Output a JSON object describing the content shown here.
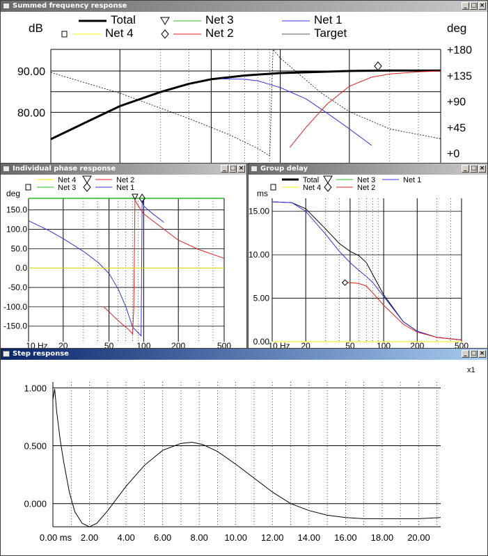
{
  "windows": {
    "summed": {
      "title": "Summed frequency response"
    },
    "phase": {
      "title": "Individual phase response"
    },
    "group": {
      "title": "Group delay"
    },
    "step": {
      "title": "Step response"
    }
  },
  "window_buttons": {
    "minimize": "_",
    "maximize": "□",
    "close": "×"
  },
  "colors": {
    "total": "#000000",
    "net1": "#3030e0",
    "net2": "#e02020",
    "net3": "#20c020",
    "net4": "#f0f000",
    "target": "#555555",
    "active_title": "#0a246a"
  },
  "chart_data": [
    {
      "id": "summed",
      "type": "line",
      "yunit_left": "dB",
      "yunit_right": "deg",
      "yticks_left": [
        "90.00",
        "80.00"
      ],
      "yticks_right": [
        "+180",
        "+135",
        "+90",
        "+45",
        "+0"
      ],
      "legend": [
        "Total",
        "Net 3",
        "Net 1",
        "Net 4",
        "Net 2",
        "Target"
      ],
      "x_scale": "log",
      "series": [
        {
          "name": "Total",
          "x": [
            10,
            15,
            20,
            30,
            40,
            50,
            70,
            100,
            150,
            200,
            300,
            500
          ],
          "y": [
            74.5,
            79.2,
            82.5,
            85.9,
            87.9,
            89.0,
            89.9,
            90.5,
            90.8,
            91.0,
            91.1,
            91.1
          ]
        },
        {
          "name": "Net 1",
          "x": [
            55,
            70,
            80,
            100,
            130,
            160,
            200,
            250
          ],
          "y": [
            89.1,
            89.0,
            88.6,
            87.0,
            84.2,
            80.8,
            77.0,
            73.0
          ]
        },
        {
          "name": "Net 2",
          "x": [
            110,
            130,
            160,
            200,
            250,
            300,
            400,
            500
          ],
          "y": [
            72.5,
            77.5,
            83.0,
            87.3,
            89.5,
            90.3,
            90.8,
            91.0
          ]
        },
        {
          "name": "Phase",
          "axis": "right",
          "x": [
            10,
            20,
            40,
            60,
            80,
            90,
            93,
            100,
            150,
            200,
            300,
            500
          ],
          "y": [
            140,
            104,
            60,
            32,
            8,
            -5,
            180,
            165,
            105,
            72,
            42,
            25
          ]
        }
      ]
    },
    {
      "id": "phase",
      "type": "line",
      "yunit": "deg",
      "yticks": [
        "150.0",
        "100.0",
        "50.0",
        "0.0",
        "-50.0",
        "-100.0",
        "-150.0"
      ],
      "xticks": [
        "10 Hz",
        "20",
        "50",
        "100",
        "200",
        "500"
      ],
      "ylim": [
        -180,
        180
      ],
      "x_scale": "log",
      "legend": [
        "Net 4",
        "Net 2",
        "Net 3",
        "Net 1"
      ],
      "series": [
        {
          "name": "Net 1",
          "x": [
            10,
            15,
            20,
            30,
            40,
            50,
            60,
            70,
            80,
            95,
            97,
            100,
            120,
            150
          ],
          "y": [
            122,
            97,
            76,
            43,
            15,
            -14,
            -54,
            -100,
            -152,
            -175,
            175,
            160,
            140,
            118
          ]
        },
        {
          "name": "Net 2",
          "x": [
            45,
            55,
            65,
            75,
            80,
            82,
            84,
            90,
            100,
            150,
            200,
            300,
            500
          ],
          "y": [
            -100,
            -125,
            -145,
            -160,
            -170,
            -105,
            175,
            160,
            140,
            100,
            72,
            48,
            25
          ]
        },
        {
          "name": "Net 4",
          "x": [
            10,
            500
          ],
          "y": [
            0,
            0
          ]
        },
        {
          "name": "Net 3",
          "x": [
            10,
            500
          ],
          "y": [
            180,
            180
          ]
        }
      ]
    },
    {
      "id": "group",
      "type": "line",
      "yunit": "ms",
      "yticks": [
        "15.00",
        "10.00",
        "5.00",
        "0.00"
      ],
      "xticks": [
        "10 Hz",
        "20",
        "50",
        "100",
        "200",
        "500"
      ],
      "ylim": [
        0,
        16.5
      ],
      "x_scale": "log",
      "legend": [
        "Total",
        "Net 3",
        "Net 1",
        "Net 4",
        "Net 2"
      ],
      "series": [
        {
          "name": "Total",
          "x": [
            10,
            15,
            20,
            30,
            40,
            50,
            60,
            70,
            80,
            100,
            150,
            200,
            300,
            500
          ],
          "y": [
            16.1,
            16.0,
            15.3,
            13.0,
            11.3,
            10.4,
            9.9,
            9.1,
            7.7,
            5.4,
            2.3,
            1.2,
            0.5,
            0.2
          ]
        },
        {
          "name": "Net 1",
          "x": [
            10,
            15,
            20,
            30,
            40,
            50,
            60,
            70,
            80,
            100,
            150,
            200,
            300,
            500
          ],
          "y": [
            16.1,
            16.0,
            15.0,
            12.4,
            10.4,
            9.1,
            8.2,
            7.5,
            6.8,
            5.2,
            2.3,
            1.2,
            0.5,
            0.2
          ]
        },
        {
          "name": "Net 2",
          "x": [
            45,
            50,
            60,
            70,
            80,
            100,
            150,
            200,
            300,
            500
          ],
          "y": [
            6.8,
            6.8,
            6.7,
            6.4,
            5.6,
            4.2,
            2.0,
            1.1,
            0.5,
            0.2
          ]
        },
        {
          "name": "Net 4",
          "x": [
            10,
            500
          ],
          "y": [
            0,
            0
          ]
        }
      ]
    },
    {
      "id": "step",
      "type": "line",
      "xunit": "ms",
      "ylabel_right": "x1",
      "yticks": [
        "1.000",
        "0.500",
        "0.000"
      ],
      "xticks": [
        "0.00 ms",
        "2.00",
        "4.00",
        "6.00",
        "8.00",
        "10.00",
        "12.00",
        "14.00",
        "16.00",
        "18.00",
        "20.00"
      ],
      "xlim": [
        0,
        21.2
      ],
      "ylim": [
        -0.2,
        1.05
      ],
      "series": [
        {
          "name": "Total",
          "x": [
            0,
            0.1,
            0.2,
            0.4,
            0.6,
            0.9,
            1.2,
            1.6,
            2.0,
            2.4,
            3.0,
            4.0,
            5.0,
            6.0,
            7.0,
            7.6,
            8.2,
            9.0,
            10.0,
            11.0,
            12.0,
            13.0,
            14.0,
            15.0,
            16.0,
            17.0,
            18.0,
            19.0,
            20.0,
            21.2
          ],
          "y": [
            0.9,
            0.99,
            0.8,
            0.55,
            0.35,
            0.1,
            -0.07,
            -0.17,
            -0.2,
            -0.17,
            -0.06,
            0.15,
            0.33,
            0.46,
            0.52,
            0.53,
            0.51,
            0.45,
            0.34,
            0.22,
            0.1,
            0.0,
            -0.06,
            -0.1,
            -0.12,
            -0.13,
            -0.13,
            -0.13,
            -0.13,
            -0.12
          ]
        }
      ]
    }
  ]
}
